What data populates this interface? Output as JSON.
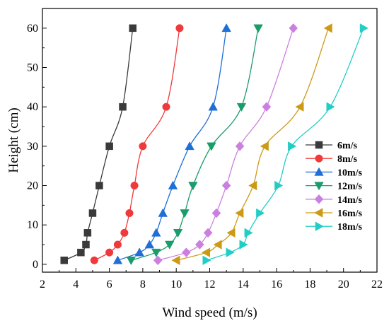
{
  "chart_data": {
    "type": "line",
    "xlabel": "Wind speed (m/s)",
    "ylabel": "Height (cm)",
    "xlim": [
      2,
      22
    ],
    "ylim": [
      -2,
      65
    ],
    "xticks": [
      2,
      4,
      6,
      8,
      10,
      12,
      14,
      16,
      18,
      20,
      22
    ],
    "yticks": [
      0,
      10,
      20,
      30,
      40,
      50,
      60
    ],
    "grid": false,
    "legend_position": "right",
    "series": [
      {
        "name": "6m/s",
        "color": "#3a3a3a",
        "marker": "square",
        "x": [
          3.3,
          4.3,
          4.6,
          4.7,
          5.0,
          5.4,
          6.0,
          6.8,
          7.4
        ],
        "y": [
          1,
          3,
          5,
          8,
          13,
          20,
          30,
          40,
          60
        ]
      },
      {
        "name": "8m/s",
        "color": "#f0393a",
        "marker": "circle",
        "x": [
          5.1,
          6.0,
          6.5,
          6.9,
          7.2,
          7.5,
          8.0,
          9.4,
          10.2
        ],
        "y": [
          1,
          3,
          5,
          8,
          13,
          20,
          30,
          40,
          60
        ]
      },
      {
        "name": "10m/s",
        "color": "#1f6fd6",
        "marker": "triangle-up",
        "x": [
          6.5,
          7.8,
          8.4,
          8.8,
          9.2,
          9.8,
          10.8,
          12.2,
          13.0
        ],
        "y": [
          1,
          3,
          5,
          8,
          13,
          20,
          30,
          40,
          60
        ]
      },
      {
        "name": "12m/s",
        "color": "#1a9c6b",
        "marker": "triangle-down",
        "x": [
          7.3,
          8.8,
          9.6,
          10.1,
          10.5,
          11.0,
          12.1,
          13.9,
          14.9
        ],
        "y": [
          1,
          3,
          5,
          8,
          13,
          20,
          30,
          40,
          60
        ]
      },
      {
        "name": "14m/s",
        "color": "#cc7fe0",
        "marker": "diamond",
        "x": [
          8.9,
          10.6,
          11.4,
          11.9,
          12.4,
          13.0,
          13.8,
          15.4,
          17.0
        ],
        "y": [
          1,
          3,
          5,
          8,
          13,
          20,
          30,
          40,
          60
        ]
      },
      {
        "name": "16m/s",
        "color": "#cc9a14",
        "marker": "triangle-left",
        "x": [
          10.0,
          11.8,
          12.5,
          13.3,
          13.8,
          14.6,
          15.3,
          17.4,
          19.1
        ],
        "y": [
          1,
          3,
          5,
          8,
          13,
          20,
          30,
          40,
          60
        ]
      },
      {
        "name": "18m/s",
        "color": "#22cdc6",
        "marker": "triangle-right",
        "x": [
          11.8,
          13.2,
          14.0,
          14.3,
          15.0,
          16.1,
          16.9,
          19.2,
          21.2
        ],
        "y": [
          1,
          3,
          5,
          8,
          13,
          20,
          30,
          40,
          60
        ]
      }
    ]
  }
}
